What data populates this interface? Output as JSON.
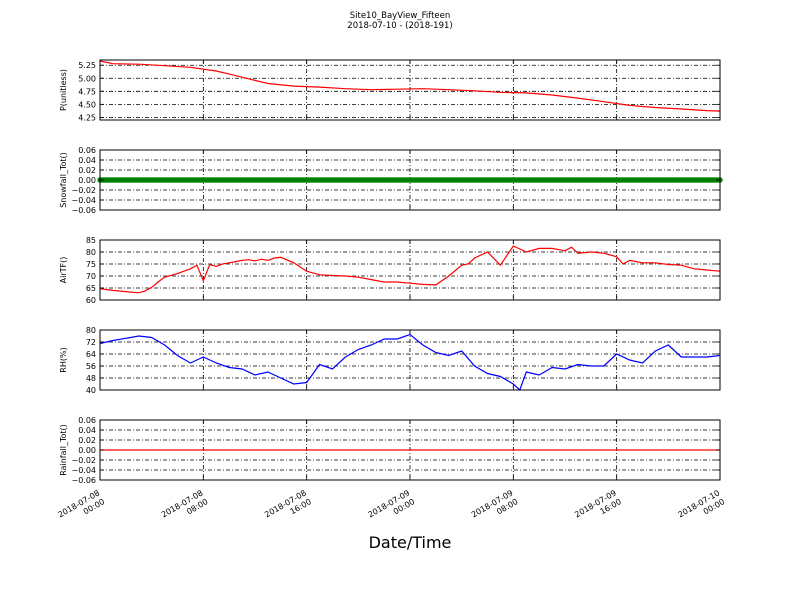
{
  "figure": {
    "title": "Site10_BayView_Fifteen",
    "subtitle": "2018-07-10 - (2018-191)",
    "xlabel": "Date/Time"
  },
  "colors": {
    "red": "#ff0000",
    "blue": "#0000ff",
    "green": "#008000",
    "grid": "#000000"
  },
  "chart_data": [
    {
      "type": "line",
      "ylabel": "P(unitless)",
      "yticks": [
        "5.25",
        "5.00",
        "4.75",
        "4.50",
        "4.25"
      ],
      "ytick_values": [
        5.25,
        5.0,
        4.75,
        4.5,
        4.25
      ],
      "ylim": [
        4.2,
        5.35
      ],
      "color": "#ff0000",
      "grid": true,
      "x_hours": [
        0,
        2,
        6,
        10,
        14,
        18,
        20,
        22,
        26,
        30,
        34,
        38,
        42,
        46,
        50,
        54,
        58,
        62,
        66,
        70,
        74,
        78,
        82,
        86,
        90,
        94,
        96
      ],
      "y": [
        5.33,
        5.28,
        5.27,
        5.24,
        5.21,
        5.14,
        5.08,
        5.02,
        4.9,
        4.85,
        4.83,
        4.8,
        4.78,
        4.79,
        4.8,
        4.78,
        4.76,
        4.73,
        4.72,
        4.68,
        4.62,
        4.55,
        4.48,
        4.44,
        4.41,
        4.38,
        4.37
      ]
    },
    {
      "type": "scatter",
      "ylabel": "Snowfall_Tot()",
      "yticks": [
        "0.06",
        "0.04",
        "0.02",
        "0.00",
        "−0.02",
        "−0.04",
        "−0.06"
      ],
      "ytick_values": [
        0.06,
        0.04,
        0.02,
        0.0,
        -0.02,
        -0.04,
        -0.06
      ],
      "ylim": [
        -0.06,
        0.06
      ],
      "color": "#008000",
      "grid": true,
      "note_value": 0.0,
      "marker_step_hours": 0.25,
      "x_range_hours": [
        0,
        96
      ]
    },
    {
      "type": "line",
      "ylabel": "AirTF()",
      "yticks": [
        "85",
        "80",
        "75",
        "70",
        "65",
        "60"
      ],
      "ytick_values": [
        85,
        80,
        75,
        70,
        65,
        60
      ],
      "ylim": [
        60,
        85
      ],
      "color": "#ff0000",
      "grid": true,
      "x_hours": [
        0,
        2,
        4,
        6,
        7,
        8,
        9,
        10,
        12,
        14,
        15,
        16,
        17,
        18,
        19,
        20,
        21,
        22,
        23,
        24,
        25,
        26,
        27,
        28,
        30,
        32,
        34,
        36,
        38,
        40,
        42,
        44,
        46,
        48,
        50,
        52,
        54,
        56,
        57,
        58,
        60,
        62,
        64,
        66,
        68,
        70,
        72,
        73,
        74,
        76,
        78,
        80,
        81,
        82,
        84,
        86,
        88,
        90,
        92,
        94,
        96
      ],
      "y": [
        64.7,
        64.0,
        63.5,
        63.0,
        63.8,
        65.3,
        67.5,
        69.5,
        71.0,
        73.0,
        74.5,
        68.0,
        74.8,
        74.0,
        75.0,
        75.5,
        76.0,
        76.5,
        76.8,
        76.3,
        77.0,
        76.5,
        77.5,
        77.8,
        75.5,
        72.0,
        70.5,
        70.2,
        70.0,
        69.5,
        68.5,
        67.5,
        67.5,
        67.0,
        66.5,
        66.3,
        70.0,
        74.5,
        75.0,
        77.5,
        80.0,
        74.5,
        82.5,
        80.0,
        81.5,
        81.5,
        80.5,
        82.0,
        79.5,
        80.0,
        79.5,
        78.0,
        75.0,
        76.5,
        75.5,
        75.5,
        74.8,
        74.5,
        73.0,
        72.5,
        72.0
      ]
    },
    {
      "type": "line",
      "ylabel": "RH(%)",
      "yticks": [
        "80",
        "72",
        "64",
        "56",
        "48",
        "40"
      ],
      "ytick_values": [
        80,
        72,
        64,
        56,
        48,
        40
      ],
      "ylim": [
        40,
        80
      ],
      "color": "#0000ff",
      "grid": true,
      "x_hours": [
        0,
        2,
        4,
        6,
        8,
        10,
        12,
        14,
        16,
        18,
        20,
        22,
        24,
        26,
        28,
        30,
        32,
        34,
        36,
        38,
        40,
        42,
        44,
        46,
        48,
        50,
        52,
        54,
        56,
        58,
        60,
        62,
        64,
        65,
        66,
        68,
        70,
        72,
        74,
        76,
        78,
        80,
        82,
        84,
        86,
        88,
        90,
        92,
        94,
        96
      ],
      "y": [
        71,
        73,
        74.5,
        76,
        75,
        70,
        63,
        58,
        62,
        58,
        55,
        54,
        50,
        52,
        48,
        44,
        45,
        57,
        54,
        62,
        67,
        70,
        74,
        74,
        77,
        70,
        65,
        63,
        66,
        56,
        51,
        49,
        44,
        40,
        52,
        50,
        55,
        54,
        57,
        56,
        56,
        64,
        60,
        58,
        66,
        70,
        62,
        62,
        62,
        63
      ]
    },
    {
      "type": "line",
      "ylabel": "Rainfall_Tot()",
      "yticks": [
        "0.06",
        "0.04",
        "0.02",
        "0.00",
        "−0.02",
        "−0.04",
        "−0.06"
      ],
      "ytick_values": [
        0.06,
        0.04,
        0.02,
        0.0,
        -0.02,
        -0.04,
        -0.06
      ],
      "ylim": [
        -0.06,
        0.06
      ],
      "color": "#ff0000",
      "grid": true,
      "x_hours": [
        0,
        96
      ],
      "y": [
        0.0,
        0.0
      ]
    }
  ],
  "xaxis": {
    "range_hours": [
      0,
      96
    ],
    "ticks": [
      {
        "hour": 0,
        "line1": "2018-07-08",
        "line2": "00:00"
      },
      {
        "hour": 16,
        "line1": "2018-07-08",
        "line2": "08:00"
      },
      {
        "hour": 32,
        "line1": "2018-07-08",
        "line2": "16:00"
      },
      {
        "hour": 48,
        "line1": "2018-07-09",
        "line2": "00:00"
      },
      {
        "hour": 64,
        "line1": "2018-07-09",
        "line2": "08:00"
      },
      {
        "hour": 80,
        "line1": "2018-07-09",
        "line2": "16:00"
      },
      {
        "hour": 96,
        "line1": "2018-07-10",
        "line2": "00:00"
      }
    ]
  }
}
